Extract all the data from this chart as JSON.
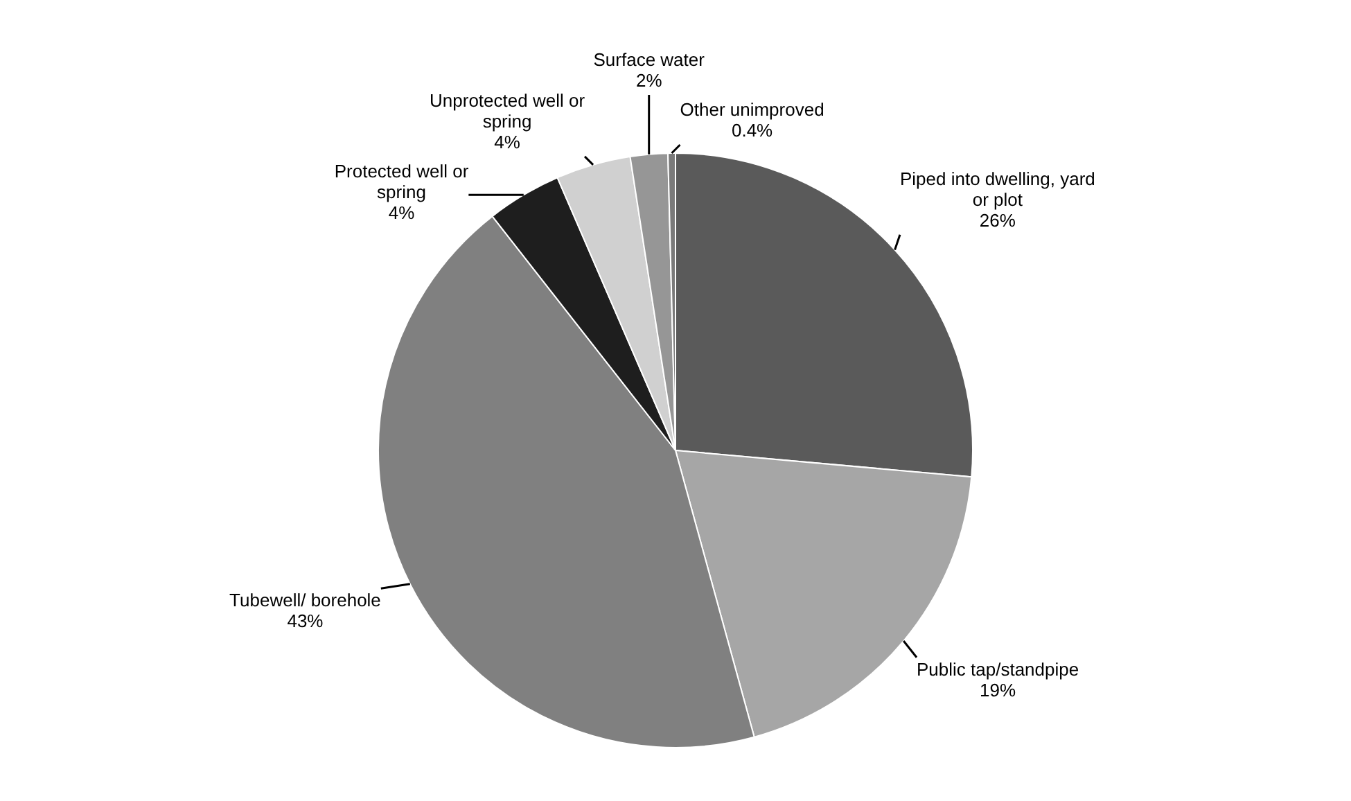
{
  "chart_data": {
    "type": "pie",
    "categories": [
      "Piped into dwelling, yard or plot",
      "Public tap/standpipe",
      "Tubewell/ borehole",
      "Protected well or spring",
      "Unprotected well or spring",
      "Surface water",
      "Other unimproved"
    ],
    "values": [
      26,
      19,
      43,
      4,
      4,
      2,
      0.4
    ],
    "value_labels": [
      "26%",
      "19%",
      "43%",
      "4%",
      "4%",
      "2%",
      "0.4%"
    ],
    "colors": [
      "#5a5a5a",
      "#a6a6a6",
      "#808080",
      "#1e1e1e",
      "#d0d0d0",
      "#969696",
      "#7a7a7a"
    ],
    "legend": false
  }
}
